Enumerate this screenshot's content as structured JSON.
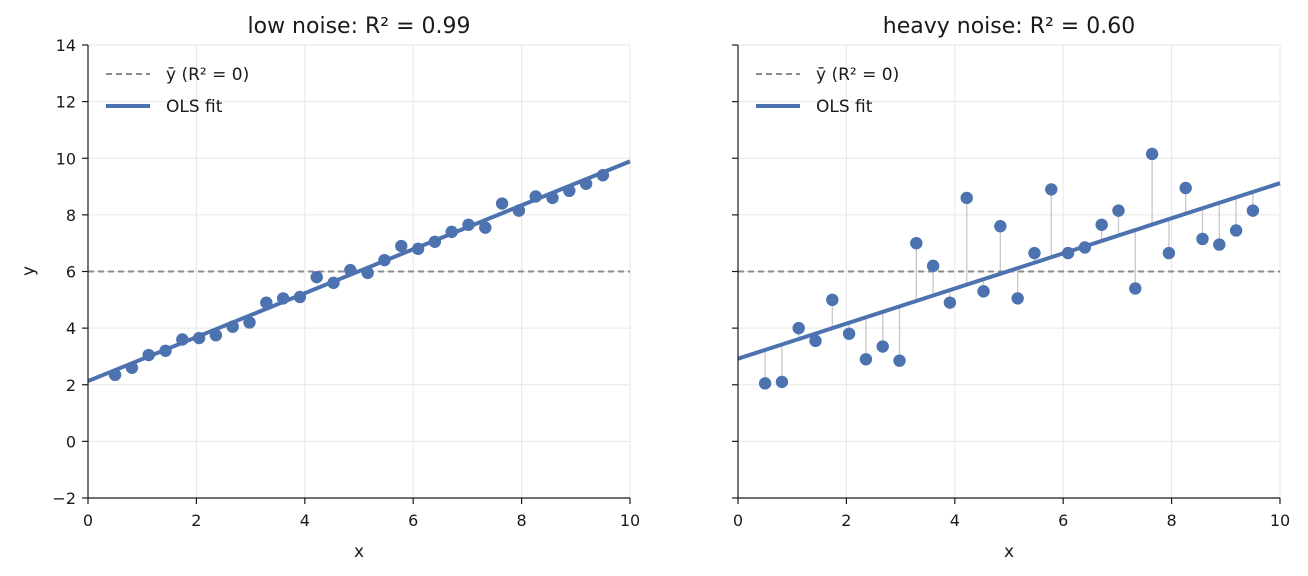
{
  "colors": {
    "points": "#4c72b0",
    "fit_line": "#4c72b0",
    "mean_line": "#8c8c8c",
    "residual": "#c8c8c8",
    "grid": "#e6e6e6"
  },
  "chart_data": [
    {
      "type": "scatter",
      "title": "low noise: R² = 0.99",
      "xlabel": "x",
      "ylabel": "y",
      "xlim": [
        0,
        10
      ],
      "ylim": [
        -2,
        14
      ],
      "xticks": [
        0,
        2,
        4,
        6,
        8,
        10
      ],
      "yticks": [
        -2,
        0,
        2,
        4,
        6,
        8,
        10,
        12,
        14
      ],
      "xtick_labels": [
        "0",
        "2",
        "4",
        "6",
        "8",
        "10"
      ],
      "ytick_labels": [
        "−2",
        "0",
        "2",
        "4",
        "6",
        "8",
        "10",
        "12",
        "14"
      ],
      "grid": true,
      "legend": {
        "placement": "upper-left",
        "mean_label": "ȳ (R² = 0)",
        "fit_label": "OLS fit"
      },
      "mean_y": 6.0,
      "fit": {
        "intercept": 2.13,
        "slope": 0.776
      },
      "show_residuals": false,
      "x": [
        0.5,
        0.81,
        1.12,
        1.43,
        1.74,
        2.05,
        2.36,
        2.67,
        2.98,
        3.29,
        3.6,
        3.91,
        4.22,
        4.53,
        4.84,
        5.16,
        5.47,
        5.78,
        6.09,
        6.4,
        6.71,
        7.02,
        7.33,
        7.64,
        7.95,
        8.26,
        8.57,
        8.88,
        9.19,
        9.5
      ],
      "y": [
        2.35,
        2.6,
        3.05,
        3.2,
        3.6,
        3.65,
        3.75,
        4.05,
        4.2,
        4.9,
        5.05,
        5.1,
        5.8,
        5.6,
        6.05,
        5.95,
        6.4,
        6.9,
        6.8,
        7.05,
        7.4,
        7.65,
        7.55,
        8.4,
        8.15,
        8.65,
        8.6,
        8.85,
        9.1,
        9.4
      ]
    },
    {
      "type": "scatter",
      "title": "heavy noise: R² = 0.60",
      "xlabel": "x",
      "ylabel": "",
      "xlim": [
        0,
        10
      ],
      "ylim": [
        -2,
        14
      ],
      "xticks": [
        0,
        2,
        4,
        6,
        8,
        10
      ],
      "yticks": [
        -2,
        0,
        2,
        4,
        6,
        8,
        10,
        12,
        14
      ],
      "xtick_labels": [
        "0",
        "2",
        "4",
        "6",
        "8",
        "10"
      ],
      "ytick_labels": [],
      "grid": true,
      "legend": {
        "placement": "upper-left",
        "mean_label": "ȳ (R² = 0)",
        "fit_label": "OLS fit"
      },
      "mean_y": 6.0,
      "fit": {
        "intercept": 2.92,
        "slope": 0.62
      },
      "show_residuals": true,
      "x": [
        0.5,
        0.81,
        1.12,
        1.43,
        1.74,
        2.05,
        2.36,
        2.67,
        2.98,
        3.29,
        3.6,
        3.91,
        4.22,
        4.53,
        4.84,
        5.16,
        5.47,
        5.78,
        6.09,
        6.4,
        6.71,
        7.02,
        7.33,
        7.64,
        7.95,
        8.26,
        8.57,
        8.88,
        9.19,
        9.5
      ],
      "y": [
        2.05,
        2.1,
        4.0,
        3.55,
        5.0,
        3.8,
        2.9,
        3.35,
        2.85,
        7.0,
        6.2,
        4.9,
        8.6,
        5.3,
        7.6,
        5.05,
        6.65,
        8.9,
        6.65,
        6.85,
        7.65,
        8.15,
        5.4,
        10.15,
        6.65,
        8.95,
        7.15,
        6.95,
        7.45,
        8.15
      ]
    }
  ]
}
